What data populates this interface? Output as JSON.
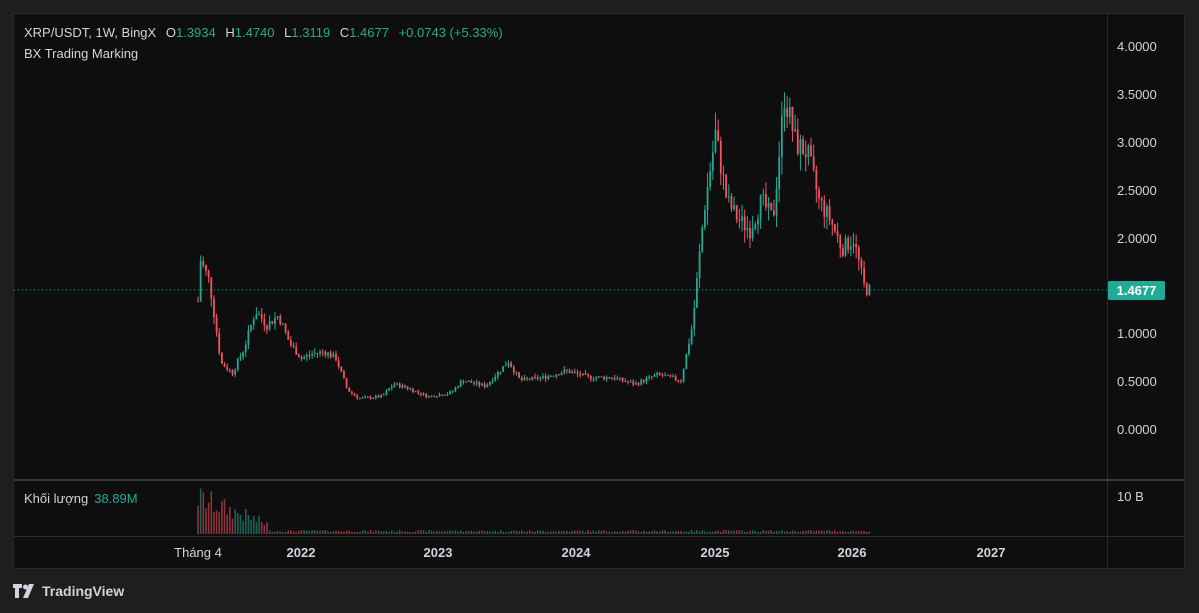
{
  "header": {
    "symbol_line": "XRP/USDT, 1W, BingX",
    "open_label": "O",
    "open": "1.3934",
    "high_label": "H",
    "high": "1.4740",
    "low_label": "L",
    "low": "1.3119",
    "close_label": "C",
    "close": "1.4677",
    "change": "+0.0743 (+5.33%)"
  },
  "indicator": {
    "name": "BX Trading Marking"
  },
  "volume": {
    "label": "Khối lượng",
    "value": "38.89M",
    "axis_tick": "10 B"
  },
  "price_axis": {
    "ticks": [
      "4.0000",
      "3.5000",
      "3.0000",
      "2.5000",
      "2.0000",
      "1.0000",
      "0.5000",
      "0.0000"
    ],
    "last_price": "1.4677"
  },
  "time_axis": {
    "ticks": [
      {
        "label": "Tháng 4",
        "bold": false
      },
      {
        "label": "2022",
        "bold": true
      },
      {
        "label": "2023",
        "bold": true
      },
      {
        "label": "2024",
        "bold": true
      },
      {
        "label": "2025",
        "bold": true
      },
      {
        "label": "2026",
        "bold": true
      },
      {
        "label": "2027",
        "bold": true
      }
    ]
  },
  "footer": {
    "brand": "TradingView"
  },
  "colors": {
    "up": "#22ab94",
    "down": "#f7525f",
    "background": "#0e0e0e",
    "accent": "#22ab94"
  },
  "chart_data": {
    "type": "candlestick",
    "symbol": "XRP/USDT",
    "interval": "1W",
    "exchange": "BingX",
    "ylim": [
      0,
      4.0
    ],
    "x_range": [
      "2021-04",
      "2027-03"
    ],
    "last_price": 1.4677,
    "price_path": [
      [
        "2021-04",
        1.35
      ],
      [
        "2021-04",
        1.85
      ],
      [
        "2021-05",
        1.55
      ],
      [
        "2021-06",
        0.7
      ],
      [
        "2021-07",
        0.6
      ],
      [
        "2021-08",
        0.85
      ],
      [
        "2021-09",
        1.25
      ],
      [
        "2021-10",
        1.1
      ],
      [
        "2021-11",
        1.2
      ],
      [
        "2021-12",
        0.9
      ],
      [
        "2022-01",
        0.75
      ],
      [
        "2022-02",
        0.8
      ],
      [
        "2022-03",
        0.82
      ],
      [
        "2022-04",
        0.75
      ],
      [
        "2022-05",
        0.42
      ],
      [
        "2022-06",
        0.33
      ],
      [
        "2022-08",
        0.35
      ],
      [
        "2022-09",
        0.48
      ],
      [
        "2022-10",
        0.45
      ],
      [
        "2022-11",
        0.4
      ],
      [
        "2022-12",
        0.35
      ],
      [
        "2023-02",
        0.39
      ],
      [
        "2023-03",
        0.52
      ],
      [
        "2023-05",
        0.46
      ],
      [
        "2023-07",
        0.72
      ],
      [
        "2023-08",
        0.52
      ],
      [
        "2023-10",
        0.55
      ],
      [
        "2023-12",
        0.62
      ],
      [
        "2024-02",
        0.55
      ],
      [
        "2024-04",
        0.55
      ],
      [
        "2024-06",
        0.48
      ],
      [
        "2024-08",
        0.58
      ],
      [
        "2024-10",
        0.52
      ],
      [
        "2024-11",
        1.1
      ],
      [
        "2024-12",
        2.3
      ],
      [
        "2025-01",
        3.1
      ],
      [
        "2025-02",
        2.4
      ],
      [
        "2025-03",
        2.2
      ],
      [
        "2025-04",
        2.1
      ],
      [
        "2025-05",
        2.4
      ],
      [
        "2025-06",
        2.2
      ],
      [
        "2025-07",
        3.5
      ],
      [
        "2025-08",
        3.0
      ],
      [
        "2025-09",
        2.9
      ],
      [
        "2025-10",
        2.4
      ],
      [
        "2025-11",
        2.2
      ],
      [
        "2025-12",
        1.9
      ],
      [
        "2026-01",
        2.0
      ],
      [
        "2026-02",
        1.47
      ]
    ],
    "volume_unit": "B",
    "volume_ylim": [
      0,
      10
    ]
  }
}
